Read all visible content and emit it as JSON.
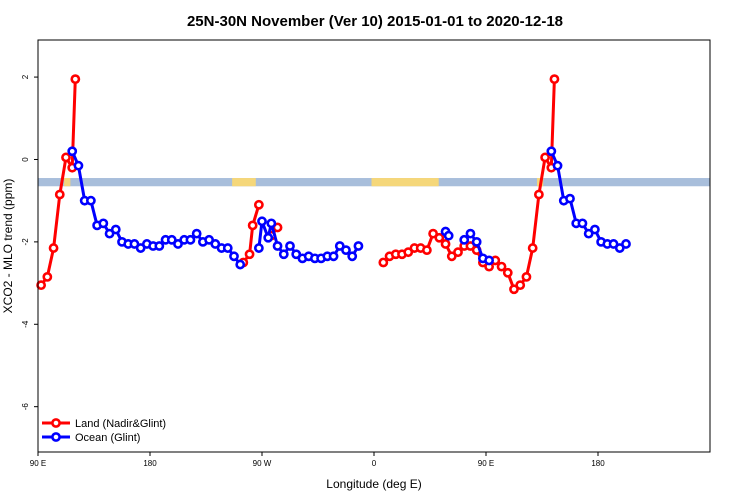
{
  "chart_data": {
    "type": "line",
    "title": "25N-30N November (Ver 10)   2015-01-01 to 2020-12-18",
    "xlabel": "Longitude (deg E)",
    "ylabel": "XCO2 - MLO trend (ppm)",
    "xlim": [
      90,
      630
    ],
    "ylim": [
      -7.1,
      2.9
    ],
    "x_ticks": [
      {
        "value": 90,
        "label": "90 E"
      },
      {
        "value": 180,
        "label": "180"
      },
      {
        "value": 270,
        "label": "90 W"
      },
      {
        "value": 360,
        "label": "0"
      },
      {
        "value": 450,
        "label": "90 E"
      },
      {
        "value": 540,
        "label": "180"
      }
    ],
    "y_ticks": [
      {
        "value": -6,
        "label": "-6"
      },
      {
        "value": -4,
        "label": "-4"
      },
      {
        "value": -2,
        "label": "-2"
      },
      {
        "value": 0,
        "label": "0"
      },
      {
        "value": 2,
        "label": "2"
      }
    ],
    "land_ocean_band": {
      "y_range": [
        -0.65,
        -0.45
      ],
      "ocean_color": "#a8bedb",
      "land_color": "#f5d77a",
      "land_intervals": [
        [
          111,
          116
        ],
        [
          246,
          265
        ],
        [
          358,
          412
        ],
        [
          491,
          496
        ]
      ]
    },
    "series": [
      {
        "name": "Land (Nadir&Glint)",
        "color": "#ff0000",
        "segments": [
          [
            [
              92.5,
              -3.05
            ],
            [
              97.5,
              -2.85
            ],
            [
              102.5,
              -2.15
            ],
            [
              107.5,
              -0.85
            ],
            [
              112.5,
              0.05
            ],
            [
              117.5,
              -0.2
            ],
            [
              120,
              1.95
            ]
          ],
          [
            [
              255,
              -2.5
            ],
            [
              260,
              -2.3
            ],
            [
              262.5,
              -1.6
            ],
            [
              267.5,
              -1.1
            ]
          ],
          [
            [
              277.5,
              -1.85
            ],
            [
              282.5,
              -1.65
            ]
          ],
          [
            [
              367.5,
              -2.5
            ],
            [
              372.5,
              -2.35
            ],
            [
              377.5,
              -2.3
            ],
            [
              382.5,
              -2.3
            ],
            [
              387.5,
              -2.25
            ],
            [
              392.5,
              -2.15
            ],
            [
              397.5,
              -2.15
            ],
            [
              402.5,
              -2.2
            ],
            [
              407.5,
              -1.8
            ],
            [
              412.5,
              -1.9
            ],
            [
              417.5,
              -2.05
            ],
            [
              422.5,
              -2.35
            ],
            [
              427.5,
              -2.25
            ],
            [
              432.5,
              -2.1
            ],
            [
              437.5,
              -2.1
            ],
            [
              442.5,
              -2.2
            ],
            [
              447.5,
              -2.5
            ],
            [
              452.5,
              -2.6
            ],
            [
              457.5,
              -2.45
            ],
            [
              462.5,
              -2.6
            ],
            [
              467.5,
              -2.75
            ],
            [
              472.5,
              -3.15
            ],
            [
              477.5,
              -3.05
            ],
            [
              482.5,
              -2.85
            ],
            [
              487.5,
              -2.15
            ],
            [
              492.5,
              -0.85
            ],
            [
              497.5,
              0.05
            ],
            [
              502.5,
              -0.2
            ],
            [
              505,
              1.95
            ]
          ]
        ]
      },
      {
        "name": "Ocean (Glint)",
        "color": "#0000ff",
        "segments": [
          [
            [
              117.5,
              0.2
            ],
            [
              122.5,
              -0.15
            ],
            [
              127.5,
              -1.0
            ],
            [
              132.5,
              -1.0
            ],
            [
              137.5,
              -1.6
            ],
            [
              142.5,
              -1.55
            ],
            [
              147.5,
              -1.8
            ],
            [
              152.5,
              -1.7
            ],
            [
              157.5,
              -2.0
            ],
            [
              162.5,
              -2.05
            ],
            [
              167.5,
              -2.05
            ],
            [
              172.5,
              -2.15
            ],
            [
              177.5,
              -2.05
            ],
            [
              182.5,
              -2.1
            ],
            [
              187.5,
              -2.1
            ],
            [
              192.5,
              -1.95
            ],
            [
              197.5,
              -1.95
            ],
            [
              202.5,
              -2.05
            ],
            [
              207.5,
              -1.95
            ],
            [
              212.5,
              -1.95
            ],
            [
              217.5,
              -1.8
            ],
            [
              222.5,
              -2.0
            ],
            [
              227.5,
              -1.95
            ],
            [
              232.5,
              -2.05
            ],
            [
              237.5,
              -2.15
            ],
            [
              242.5,
              -2.15
            ],
            [
              247.5,
              -2.35
            ],
            [
              252.5,
              -2.55
            ]
          ],
          [
            [
              267.5,
              -2.15
            ],
            [
              270,
              -1.5
            ],
            [
              275,
              -1.9
            ],
            [
              277.5,
              -1.55
            ],
            [
              282.5,
              -2.1
            ],
            [
              287.5,
              -2.3
            ],
            [
              292.5,
              -2.1
            ],
            [
              297.5,
              -2.3
            ],
            [
              302.5,
              -2.4
            ],
            [
              307.5,
              -2.35
            ],
            [
              312.5,
              -2.4
            ],
            [
              317.5,
              -2.4
            ],
            [
              322.5,
              -2.35
            ],
            [
              327.5,
              -2.35
            ],
            [
              332.5,
              -2.1
            ],
            [
              337.5,
              -2.2
            ],
            [
              342.5,
              -2.35
            ],
            [
              347.5,
              -2.1
            ]
          ],
          [
            [
              417.5,
              -1.75
            ],
            [
              420,
              -1.85
            ]
          ],
          [
            [
              432.5,
              -1.95
            ],
            [
              437.5,
              -1.8
            ],
            [
              442.5,
              -2.0
            ],
            [
              447.5,
              -2.4
            ],
            [
              452.5,
              -2.45
            ]
          ],
          [
            [
              502.5,
              0.2
            ],
            [
              507.5,
              -0.15
            ],
            [
              512.5,
              -1.0
            ],
            [
              517.5,
              -0.95
            ],
            [
              522.5,
              -1.55
            ],
            [
              527.5,
              -1.55
            ],
            [
              532.5,
              -1.8
            ],
            [
              537.5,
              -1.7
            ],
            [
              542.5,
              -2.0
            ],
            [
              547.5,
              -2.05
            ],
            [
              552.5,
              -2.05
            ],
            [
              557.5,
              -2.15
            ],
            [
              562.5,
              -2.05
            ]
          ]
        ]
      }
    ]
  }
}
